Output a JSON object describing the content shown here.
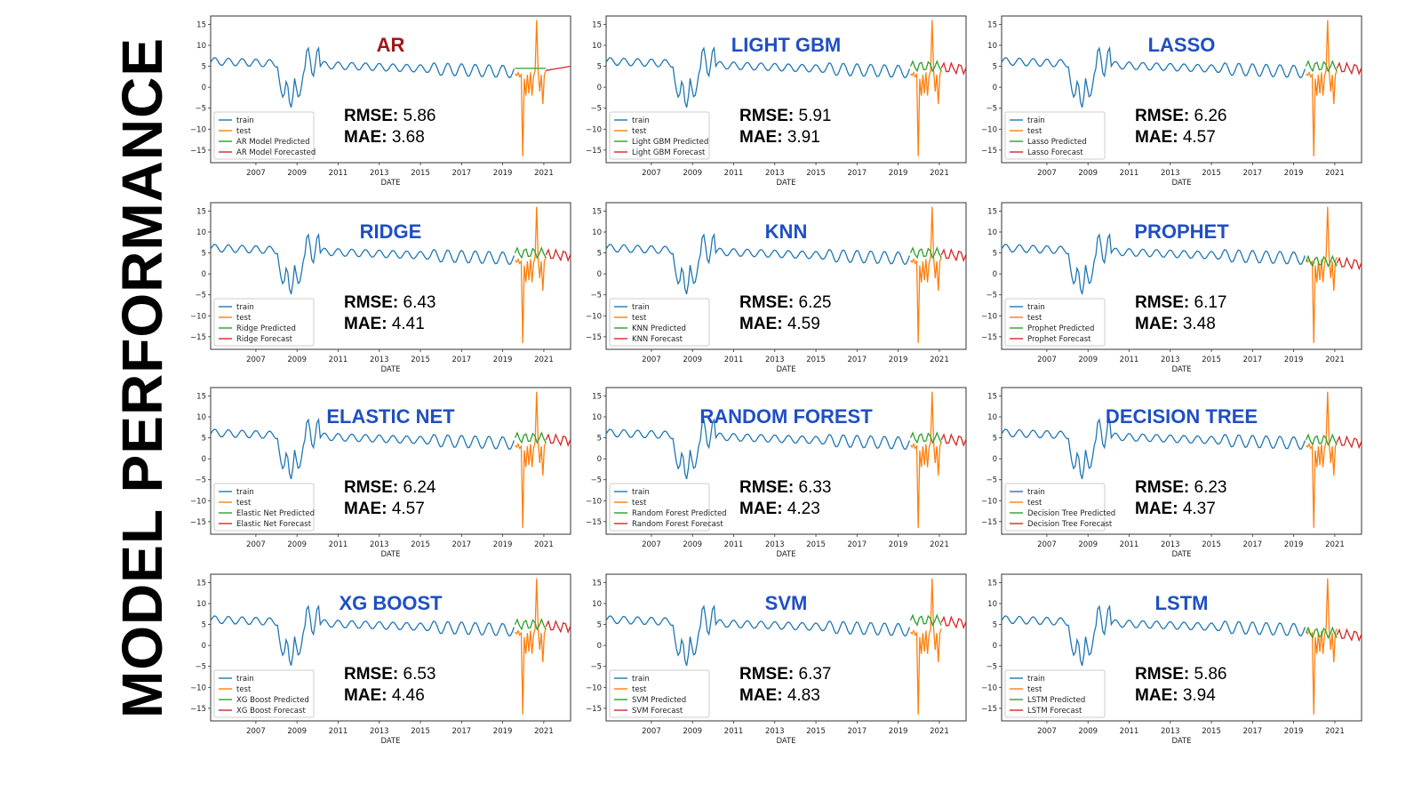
{
  "slide_title": "MODEL PERFORMANCE",
  "colors": {
    "train": "#1f77b4",
    "test": "#ff7f0e",
    "predicted": "#2ca02c",
    "forecast": "#d62728",
    "title_default": "#1f4fc4",
    "title_ar": "#a01818"
  },
  "shared": {
    "xlabel": "DATE",
    "xticks": [
      "2007",
      "2009",
      "2011",
      "2013",
      "2015",
      "2017",
      "2019",
      "2021"
    ],
    "yticks": [
      15,
      10,
      5,
      0,
      -5,
      -10,
      -15
    ],
    "legend_common": [
      "train",
      "test"
    ]
  },
  "chart_data": [
    {
      "type": "line",
      "title": "AR",
      "rmse_label": "RMSE:",
      "rmse_value": "5.86",
      "mae_label": "MAE:",
      "mae_value": "3.68",
      "series": [
        {
          "name": "train"
        },
        {
          "name": "test"
        },
        {
          "name": "AR Model Predicted"
        },
        {
          "name": "AR Model Forecasted"
        }
      ],
      "xlabel": "DATE",
      "ylim": [
        -18,
        17
      ],
      "predicted_level": 4.5
    },
    {
      "type": "line",
      "title": "LIGHT GBM",
      "rmse_label": "RMSE:",
      "rmse_value": "5.91",
      "mae_label": "MAE:",
      "mae_value": "3.91",
      "series": [
        {
          "name": "train"
        },
        {
          "name": "test"
        },
        {
          "name": "Light GBM Predicted"
        },
        {
          "name": "Light GBM Forecast"
        }
      ],
      "xlabel": "DATE",
      "ylim": [
        -18,
        17
      ],
      "predicted_level": 5
    },
    {
      "type": "line",
      "title": "LASSO",
      "rmse_label": "RMSE:",
      "rmse_value": "6.26",
      "mae_label": "MAE:",
      "mae_value": "4.57",
      "series": [
        {
          "name": "train"
        },
        {
          "name": "test"
        },
        {
          "name": "Lasso Predicted"
        },
        {
          "name": "Lasso Forecast"
        }
      ],
      "xlabel": "DATE",
      "ylim": [
        -18,
        17
      ],
      "predicted_level": 5
    },
    {
      "type": "line",
      "title": "RIDGE",
      "rmse_label": "RMSE:",
      "rmse_value": "6.43",
      "mae_label": "MAE:",
      "mae_value": "4.41",
      "series": [
        {
          "name": "train"
        },
        {
          "name": "test"
        },
        {
          "name": "Ridge Predicted"
        },
        {
          "name": "Ridge Forecast"
        }
      ],
      "xlabel": "DATE",
      "ylim": [
        -18,
        17
      ],
      "predicted_level": 5
    },
    {
      "type": "line",
      "title": "KNN",
      "rmse_label": "RMSE:",
      "rmse_value": "6.25",
      "mae_label": "MAE:",
      "mae_value": "4.59",
      "series": [
        {
          "name": "train"
        },
        {
          "name": "test"
        },
        {
          "name": "KNN Predicted"
        },
        {
          "name": "KNN Forecast"
        }
      ],
      "xlabel": "DATE",
      "ylim": [
        -18,
        17
      ],
      "predicted_level": 5
    },
    {
      "type": "line",
      "title": "PROPHET",
      "rmse_label": "RMSE:",
      "rmse_value": "6.17",
      "mae_label": "MAE:",
      "mae_value": "3.48",
      "series": [
        {
          "name": "train"
        },
        {
          "name": "test"
        },
        {
          "name": "Prophet Predicted"
        },
        {
          "name": "Prophet Forecast"
        }
      ],
      "xlabel": "DATE",
      "ylim": [
        -18,
        17
      ],
      "predicted_level": 3
    },
    {
      "type": "line",
      "title": "ELASTIC NET",
      "rmse_label": "RMSE:",
      "rmse_value": "6.24",
      "mae_label": "MAE:",
      "mae_value": "4.57",
      "series": [
        {
          "name": "train"
        },
        {
          "name": "test"
        },
        {
          "name": "Elastic Net Predicted"
        },
        {
          "name": "Elastic Net Forecast"
        }
      ],
      "xlabel": "DATE",
      "ylim": [
        -18,
        17
      ],
      "predicted_level": 5
    },
    {
      "type": "line",
      "title": "RANDOM FOREST",
      "rmse_label": "RMSE:",
      "rmse_value": "6.33",
      "mae_label": "MAE:",
      "mae_value": "4.23",
      "series": [
        {
          "name": "train"
        },
        {
          "name": "test"
        },
        {
          "name": "Random Forest Predicted"
        },
        {
          "name": "Random Forest Forecast"
        }
      ],
      "xlabel": "DATE",
      "ylim": [
        -18,
        17
      ],
      "predicted_level": 5
    },
    {
      "type": "line",
      "title": "DECISION TREE",
      "rmse_label": "RMSE:",
      "rmse_value": "6.23",
      "mae_label": "MAE:",
      "mae_value": "4.37",
      "series": [
        {
          "name": "train"
        },
        {
          "name": "test"
        },
        {
          "name": "Decision Tree Predicted"
        },
        {
          "name": "Decision Tree Forecast"
        }
      ],
      "xlabel": "DATE",
      "ylim": [
        -18,
        17
      ],
      "predicted_level": 4.5
    },
    {
      "type": "line",
      "title": "XG BOOST",
      "rmse_label": "RMSE:",
      "rmse_value": "6.53",
      "mae_label": "MAE:",
      "mae_value": "4.46",
      "series": [
        {
          "name": "train"
        },
        {
          "name": "test"
        },
        {
          "name": "XG Boost Predicted"
        },
        {
          "name": "XG Boost Forecast"
        }
      ],
      "xlabel": "DATE",
      "ylim": [
        -18,
        17
      ],
      "predicted_level": 5
    },
    {
      "type": "line",
      "title": "SVM",
      "rmse_label": "RMSE:",
      "rmse_value": "6.37",
      "mae_label": "MAE:",
      "mae_value": "4.83",
      "series": [
        {
          "name": "train"
        },
        {
          "name": "test"
        },
        {
          "name": "SVM Predicted"
        },
        {
          "name": "SVM Forecast"
        }
      ],
      "xlabel": "DATE",
      "ylim": [
        -18,
        17
      ],
      "predicted_level": 6
    },
    {
      "type": "line",
      "title": "LSTM",
      "rmse_label": "RMSE:",
      "rmse_value": "5.86",
      "mae_label": "MAE:",
      "mae_value": "3.94",
      "series": [
        {
          "name": "train"
        },
        {
          "name": "test"
        },
        {
          "name": "LSTM Predicted"
        },
        {
          "name": "LSTM Forecast"
        }
      ],
      "xlabel": "DATE",
      "ylim": [
        -18,
        17
      ],
      "predicted_level": 3
    }
  ]
}
